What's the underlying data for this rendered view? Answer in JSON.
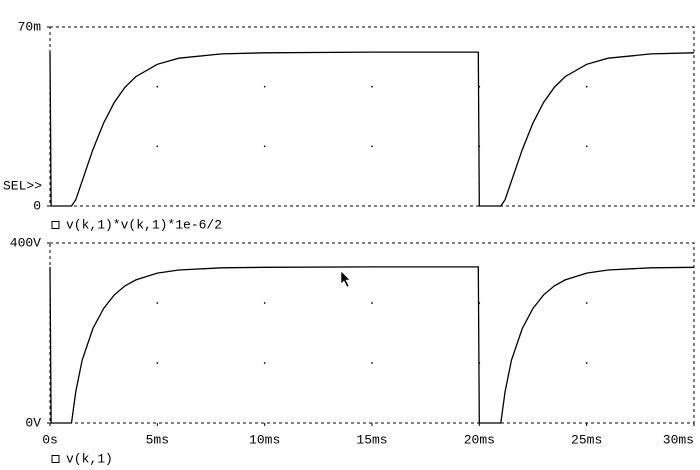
{
  "chart_data": [
    {
      "type": "line",
      "annotation": "SEL>>",
      "x": [
        0,
        0.05,
        1.0,
        1.2,
        1.5,
        2.0,
        2.5,
        3.0,
        3.5,
        4.0,
        5.0,
        6.0,
        8.0,
        10.0,
        15.0,
        19.95,
        20.0,
        21.0,
        21.2,
        21.5,
        22.0,
        22.5,
        23.0,
        23.5,
        24.0,
        25.0,
        26.0,
        28.0,
        30.0
      ],
      "series": [
        {
          "name": "v(k,1)*v(k,1)*1e-6/2",
          "color": "#000000",
          "values": [
            0.0602,
            0,
            0,
            0.00245,
            0.0098,
            0.02205,
            0.0325,
            0.0406,
            0.0465,
            0.0506,
            0.0554,
            0.0578,
            0.0595,
            0.0599,
            0.0602,
            0.0602,
            0,
            0,
            0.00245,
            0.0098,
            0.02205,
            0.0325,
            0.0406,
            0.0465,
            0.0506,
            0.0554,
            0.0578,
            0.0595,
            0.0599
          ]
        }
      ],
      "xlim": [
        0,
        30
      ],
      "ylim": [
        0,
        0.07
      ],
      "yticks": [
        {
          "value": 0.07,
          "label": "70m"
        },
        0
      ]
    },
    {
      "type": "line",
      "x": [
        0,
        0.05,
        1.0,
        1.2,
        1.5,
        2.0,
        2.5,
        3.0,
        3.5,
        4.0,
        5.0,
        6.0,
        8.0,
        10.0,
        15.0,
        19.95,
        20.0,
        21.0,
        21.2,
        21.5,
        22.0,
        22.5,
        23.0,
        23.5,
        24.0,
        25.0,
        26.0,
        28.0,
        30.0
      ],
      "series": [
        {
          "name": "v(k,1)",
          "color": "#000000",
          "values": [
            347,
            0,
            0,
            70,
            140,
            210,
            255,
            285,
            305,
            318,
            333,
            340,
            345,
            346,
            347,
            347,
            0,
            0,
            70,
            140,
            210,
            255,
            285,
            305,
            318,
            333,
            340,
            345,
            346
          ]
        }
      ],
      "xlim": [
        0,
        30
      ],
      "xticks": [
        {
          "value": 0,
          "label": "0s"
        },
        {
          "value": 5,
          "label": "5ms"
        },
        {
          "value": 10,
          "label": "10ms"
        },
        {
          "value": 15,
          "label": "15ms"
        },
        {
          "value": 20,
          "label": "20ms"
        },
        {
          "value": 25,
          "label": "25ms"
        },
        {
          "value": 30,
          "label": "30ms"
        }
      ],
      "ylim": [
        0,
        400
      ],
      "yticks": [
        {
          "value": 400,
          "label": "400V"
        },
        {
          "value": 0,
          "label": "0V"
        }
      ]
    }
  ]
}
